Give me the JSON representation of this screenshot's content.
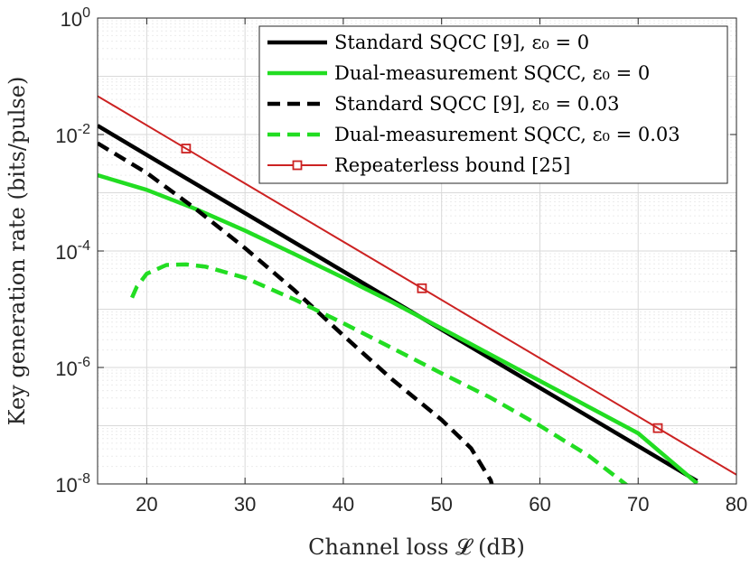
{
  "chart_data": {
    "type": "line",
    "xlabel": "Channel loss 𝓛 (dB)",
    "ylabel": "Key generation rate (bits/pulse)",
    "xlim": [
      15,
      80
    ],
    "ylim_log10": [
      -8,
      0
    ],
    "yscale": "log",
    "grid": true,
    "x_ticks": [
      20,
      30,
      40,
      50,
      60,
      70,
      80
    ],
    "y_ticks": [
      {
        "base": "10",
        "exp": "0"
      },
      {
        "base": "10",
        "exp": "-2"
      },
      {
        "base": "10",
        "exp": "-4"
      },
      {
        "base": "10",
        "exp": "-6"
      },
      {
        "base": "10",
        "exp": "-8"
      }
    ],
    "legend_placement": "top-right",
    "series": [
      {
        "name": "Standard SQCC [9], ε₀ = 0",
        "color": "#000000",
        "style": "solid",
        "points": [
          [
            15,
            0.0142
          ],
          [
            20,
            0.00447
          ],
          [
            30,
            0.000447
          ],
          [
            40,
            4.47e-05
          ],
          [
            50,
            4.47e-06
          ],
          [
            60,
            4.47e-07
          ],
          [
            70,
            4.47e-08
          ],
          [
            76,
            1.12e-08
          ]
        ]
      },
      {
        "name": "Dual-measurement SQCC, ε₀ = 0",
        "color": "#22dd22",
        "style": "solid",
        "points": [
          [
            15,
            0.002
          ],
          [
            20,
            0.00112
          ],
          [
            25,
            0.000525
          ],
          [
            30,
            0.000224
          ],
          [
            35,
            8.91e-05
          ],
          [
            40,
            3.47e-05
          ],
          [
            45,
            1.32e-05
          ],
          [
            50,
            4.68e-06
          ],
          [
            55,
            1.66e-06
          ],
          [
            60,
            5.89e-07
          ],
          [
            65,
            2.09e-07
          ],
          [
            70,
            7.41e-08
          ],
          [
            76,
            1.02e-08
          ]
        ]
      },
      {
        "name": "Standard SQCC [9], ε₀ = 0.03",
        "color": "#000000",
        "style": "dashed",
        "points": [
          [
            15,
            0.00708
          ],
          [
            20,
            0.00219
          ],
          [
            25,
            0.000525
          ],
          [
            30,
            0.000112
          ],
          [
            35,
            2.14e-05
          ],
          [
            40,
            3.55e-06
          ],
          [
            45,
            6.17e-07
          ],
          [
            50,
            1.26e-07
          ],
          [
            53,
            4.1e-08
          ],
          [
            55,
            1.15e-08
          ],
          [
            56.5,
            1.3e-09
          ]
        ]
      },
      {
        "name": "Dual-measurement SQCC, ε₀ = 0.03",
        "color": "#22dd22",
        "style": "dashed",
        "points": [
          [
            18.5,
            1.58e-05
          ],
          [
            19,
            2.45e-05
          ],
          [
            20,
            4.07e-05
          ],
          [
            22,
            5.75e-05
          ],
          [
            24,
            5.89e-05
          ],
          [
            26,
            5.37e-05
          ],
          [
            30,
            3.47e-05
          ],
          [
            35,
            1.48e-05
          ],
          [
            40,
            5.75e-06
          ],
          [
            45,
            2.14e-06
          ],
          [
            50,
            7.94e-07
          ],
          [
            55,
            3.02e-07
          ],
          [
            60,
            1e-07
          ],
          [
            65,
            3.02e-08
          ],
          [
            69,
            9.1e-09
          ]
        ]
      },
      {
        "name": "Repeaterless bound [25]",
        "color": "#cc2222",
        "style": "solid",
        "marker": "square",
        "markers_x": [
          24,
          48,
          72
        ],
        "points": [
          [
            15,
            0.0457
          ],
          [
            24,
            0.00574
          ],
          [
            48,
            2.29e-05
          ],
          [
            72,
            9.09e-08
          ],
          [
            80,
            1.44e-08
          ]
        ]
      }
    ]
  }
}
